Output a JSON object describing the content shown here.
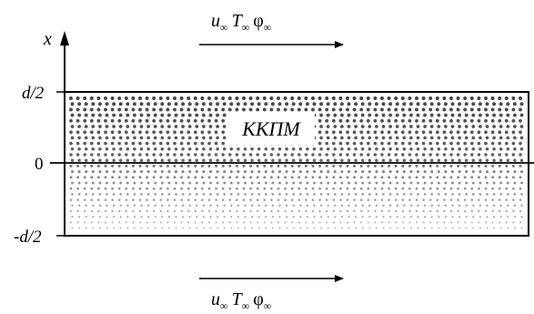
{
  "diagram": {
    "axis": {
      "label": "x"
    },
    "ticks": {
      "top": "d/2",
      "middle": "0",
      "bottom": "-d/2"
    },
    "layer": {
      "label": "ККПМ"
    },
    "flow_top": {
      "u": "u",
      "u_sub": "∞",
      "T": "T",
      "T_sub": "∞",
      "phi": "φ",
      "phi_sub": "∞"
    },
    "flow_bottom": {
      "u": "u",
      "u_sub": "∞",
      "T": "T",
      "T_sub": "∞",
      "phi": "φ",
      "phi_sub": "∞"
    }
  }
}
